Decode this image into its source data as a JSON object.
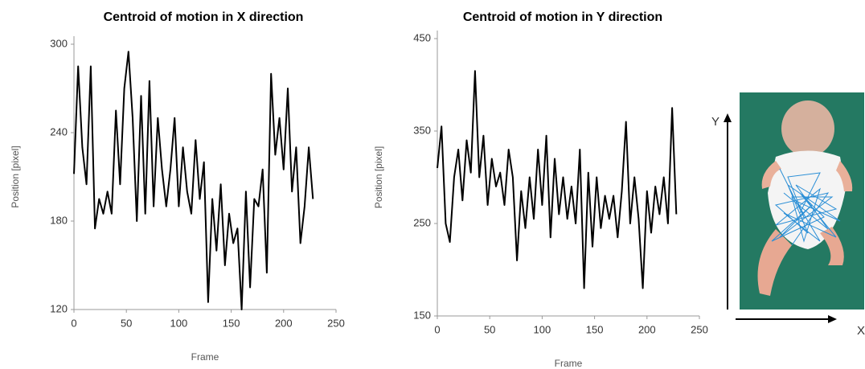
{
  "chart_data": [
    {
      "type": "line",
      "title": "Centroid of motion in X direction",
      "x_label": "Frame",
      "y_label": "Position [pixel]",
      "x": [
        0,
        4,
        8,
        12,
        16,
        20,
        24,
        28,
        32,
        36,
        40,
        44,
        48,
        52,
        56,
        60,
        64,
        68,
        72,
        76,
        80,
        84,
        88,
        92,
        96,
        100,
        104,
        108,
        112,
        116,
        120,
        124,
        128,
        132,
        136,
        140,
        144,
        148,
        152,
        156,
        160,
        164,
        168,
        172,
        176,
        180,
        184,
        188,
        192,
        196,
        200,
        204,
        208,
        212,
        216,
        220,
        224,
        228
      ],
      "values": [
        212,
        285,
        230,
        205,
        285,
        175,
        195,
        185,
        200,
        185,
        255,
        205,
        270,
        295,
        250,
        180,
        265,
        185,
        275,
        190,
        250,
        215,
        190,
        215,
        250,
        190,
        230,
        200,
        185,
        235,
        195,
        220,
        125,
        195,
        160,
        205,
        150,
        185,
        165,
        175,
        120,
        200,
        135,
        195,
        190,
        215,
        145,
        280,
        225,
        250,
        215,
        270,
        200,
        230,
        165,
        190,
        230,
        195
      ],
      "color": "#000000",
      "xlim": [
        0,
        250
      ],
      "xticks": [
        0,
        50,
        100,
        150,
        200,
        250
      ],
      "ylim": [
        120,
        300
      ],
      "yticks": [
        120,
        180,
        240,
        300
      ]
    },
    {
      "type": "line",
      "title": "Centroid of motion in Y direction",
      "x_label": "Frame",
      "y_label": "Position [pixel]",
      "x": [
        0,
        4,
        8,
        12,
        16,
        20,
        24,
        28,
        32,
        36,
        40,
        44,
        48,
        52,
        56,
        60,
        64,
        68,
        72,
        76,
        80,
        84,
        88,
        92,
        96,
        100,
        104,
        108,
        112,
        116,
        120,
        124,
        128,
        132,
        136,
        140,
        144,
        148,
        152,
        156,
        160,
        164,
        168,
        172,
        176,
        180,
        184,
        188,
        192,
        196,
        200,
        204,
        208,
        212,
        216,
        220,
        224,
        228
      ],
      "values": [
        310,
        355,
        250,
        230,
        300,
        330,
        275,
        340,
        305,
        415,
        300,
        345,
        270,
        320,
        290,
        305,
        270,
        330,
        300,
        210,
        285,
        245,
        300,
        255,
        330,
        270,
        345,
        235,
        320,
        260,
        300,
        255,
        290,
        250,
        330,
        180,
        305,
        225,
        300,
        245,
        280,
        255,
        280,
        235,
        285,
        360,
        250,
        300,
        255,
        180,
        285,
        240,
        290,
        260,
        300,
        250,
        375,
        260
      ],
      "color": "#000000",
      "xlim": [
        0,
        250
      ],
      "xticks": [
        0,
        50,
        100,
        150,
        200,
        250
      ],
      "ylim": [
        150,
        450
      ],
      "yticks": [
        150,
        250,
        350,
        450
      ]
    }
  ],
  "photo": {
    "y_label": "Y",
    "x_label": "X"
  }
}
